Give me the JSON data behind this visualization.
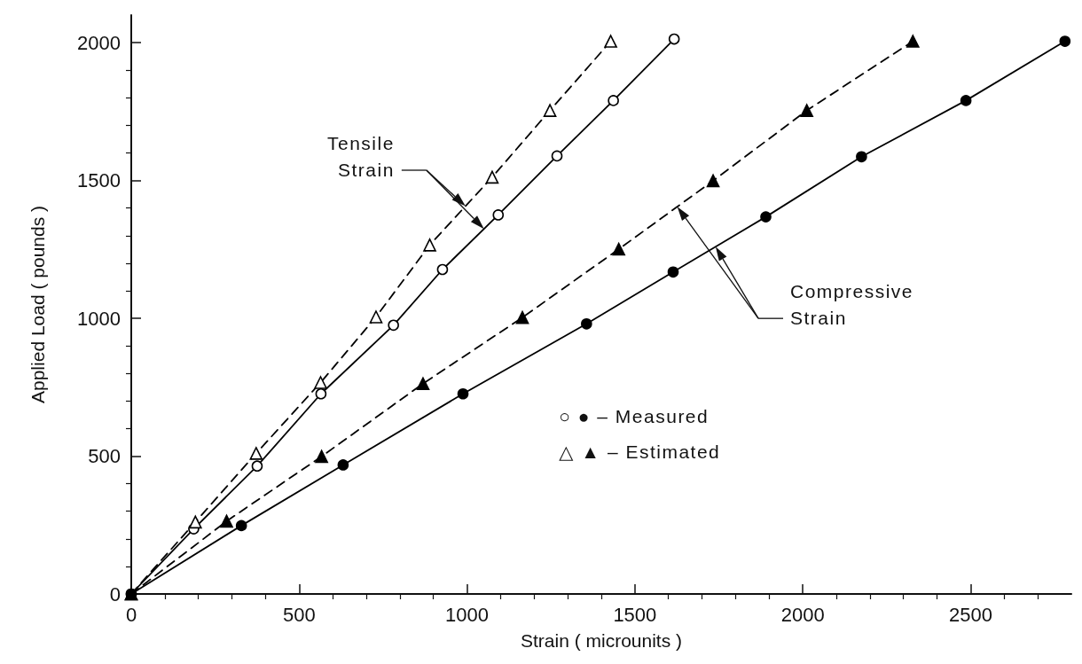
{
  "chart_data": {
    "type": "line",
    "xlabel": "Strain ( microunits )",
    "ylabel": "Applied Load ( pounds )",
    "xlim": [
      0,
      2800
    ],
    "ylim": [
      0,
      2100
    ],
    "xticks": [
      0,
      {
        "value": 100,
        "label": null
      },
      {
        "value": 200,
        "label": null
      },
      {
        "value": 300,
        "label": null
      },
      {
        "value": 400,
        "label": null
      },
      500,
      {
        "value": 600,
        "label": null
      },
      {
        "value": 700,
        "label": null
      },
      {
        "value": 800,
        "label": null
      },
      {
        "value": 900,
        "label": null
      },
      1000,
      {
        "value": 1100,
        "label": null
      },
      {
        "value": 1200,
        "label": null
      },
      {
        "value": 1300,
        "label": null
      },
      {
        "value": 1400,
        "label": null
      },
      1500,
      {
        "value": 1600,
        "label": null
      },
      {
        "value": 1700,
        "label": null
      },
      {
        "value": 1800,
        "label": null
      },
      {
        "value": 1900,
        "label": null
      },
      2000,
      {
        "value": 2100,
        "label": null
      },
      {
        "value": 2200,
        "label": null
      },
      {
        "value": 2300,
        "label": null
      },
      {
        "value": 2400,
        "label": null
      },
      2500,
      {
        "value": 2600,
        "label": null
      },
      {
        "value": 2700,
        "label": null
      }
    ],
    "yticks": [
      0,
      {
        "value": 100,
        "label": null
      },
      {
        "value": 200,
        "label": null
      },
      {
        "value": 300,
        "label": null
      },
      {
        "value": 400,
        "label": null
      },
      500,
      {
        "value": 600,
        "label": null
      },
      {
        "value": 700,
        "label": null
      },
      {
        "value": 800,
        "label": null
      },
      {
        "value": 900,
        "label": null
      },
      1000,
      {
        "value": 1100,
        "label": null
      },
      {
        "value": 1200,
        "label": null
      },
      {
        "value": 1300,
        "label": null
      },
      {
        "value": 1400,
        "label": null
      },
      1500,
      {
        "value": 1600,
        "label": null
      },
      {
        "value": 1700,
        "label": null
      },
      {
        "value": 1800,
        "label": null
      },
      {
        "value": 1900,
        "label": null
      },
      2000
    ],
    "grid": false,
    "series": [
      {
        "color": "#000000",
        "colors": [
          "#ffffff",
          "#ffffff",
          "#ffffff",
          "#ffffff",
          "#ffffff",
          "#ffffff",
          "#ffffff",
          "#ffffff",
          "#ffffff",
          "#ffffff"
        ],
        "marker": "circle",
        "line_style": "solid",
        "x": [
          0,
          186,
          375,
          565,
          781,
          927,
          1093,
          1268,
          1436,
          1617
        ],
        "values": [
          0,
          236,
          464,
          726,
          975,
          1177,
          1375,
          1589,
          1790,
          2013
        ]
      },
      {
        "color": "#000000",
        "colors": [
          "#ffffff",
          "#ffffff",
          "#ffffff",
          "#ffffff",
          "#ffffff",
          "#ffffff",
          "#ffffff",
          "#ffffff",
          "#ffffff"
        ],
        "marker": "triangle",
        "line_style": "dashed",
        "x": [
          0,
          191,
          372,
          564,
          729,
          889,
          1075,
          1247,
          1428
        ],
        "values": [
          0,
          261,
          510,
          767,
          1005,
          1266,
          1512,
          1754,
          2005
        ]
      },
      {
        "color": "#000000",
        "marker": "circle",
        "line_style": "solid",
        "x": [
          0,
          328,
          631,
          988,
          1356,
          1614,
          1890,
          2175,
          2486,
          2781
        ],
        "values": [
          0,
          248,
          468,
          726,
          980,
          1168,
          1368,
          1586,
          1790,
          2005
        ]
      },
      {
        "color": "#000000",
        "marker": "triangle",
        "line_style": "dashed",
        "x": [
          0,
          284,
          567,
          869,
          1165,
          1452,
          1733,
          2012,
          2328
        ],
        "values": [
          0,
          264,
          499,
          763,
          1003,
          1251,
          1499,
          1754,
          2005
        ]
      }
    ],
    "annotations": [
      "Tensile\nStrain",
      "Compressive\nStrain",
      "○ ● – Measured",
      "△ ▲ – Estimated"
    ]
  }
}
